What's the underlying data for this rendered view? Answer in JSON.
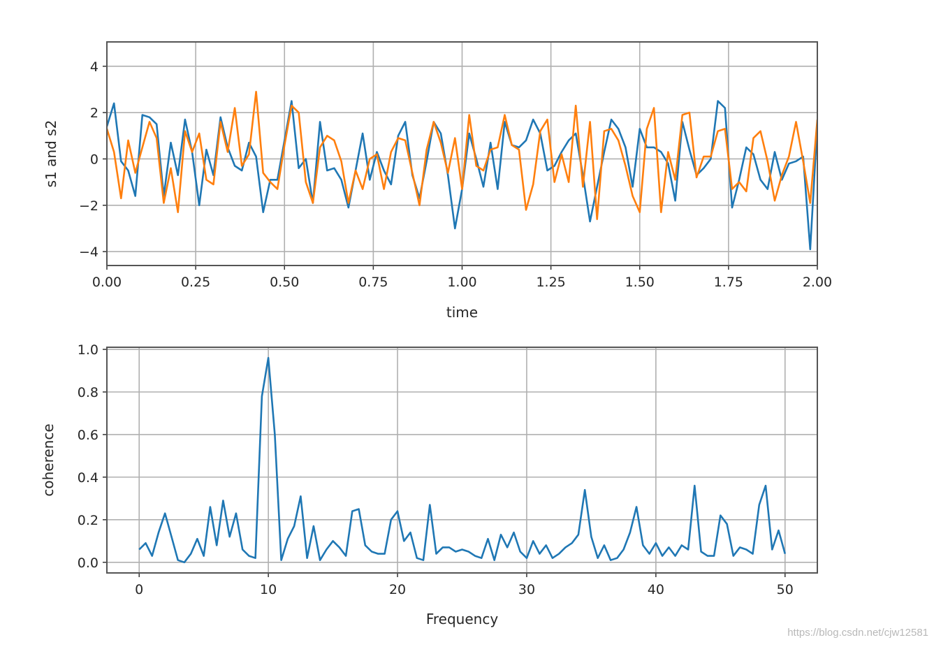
{
  "chart_data": [
    {
      "type": "line",
      "title": "",
      "xlabel": "time",
      "ylabel": "s1 and s2",
      "xlim": [
        0,
        2.0
      ],
      "ylim": [
        -4.6,
        5.05
      ],
      "grid": true,
      "xticks": [
        "0.00",
        "0.25",
        "0.50",
        "0.75",
        "1.00",
        "1.25",
        "1.50",
        "1.75",
        "2.00"
      ],
      "xtick_values": [
        0,
        0.25,
        0.5,
        0.75,
        1.0,
        1.25,
        1.5,
        1.75,
        2.0
      ],
      "yticks": [
        "−4",
        "−2",
        "0",
        "2",
        "4"
      ],
      "ytick_values": [
        -4,
        -2,
        0,
        2,
        4
      ],
      "x_start": 0,
      "x_step": 0.02,
      "series": [
        {
          "name": "s1",
          "color": "#1f77b4",
          "values": [
            1.4,
            2.4,
            -0.1,
            -0.5,
            -1.6,
            1.9,
            1.8,
            1.5,
            -1.6,
            0.7,
            -0.7,
            1.7,
            0.3,
            -2.0,
            0.4,
            -0.7,
            1.8,
            0.5,
            -0.3,
            -0.5,
            0.7,
            0.1,
            -2.3,
            -0.9,
            -0.9,
            0.8,
            2.5,
            -0.4,
            0.0,
            -1.9,
            1.6,
            -0.5,
            -0.4,
            -0.9,
            -2.1,
            -0.5,
            1.1,
            -0.9,
            0.3,
            -0.5,
            -1.1,
            1.0,
            1.6,
            -0.7,
            -1.7,
            -0.1,
            1.6,
            1.1,
            -0.7,
            -3.0,
            -1.3,
            1.1,
            0.0,
            -1.2,
            0.7,
            -1.3,
            1.6,
            0.6,
            0.5,
            0.8,
            1.7,
            1.1,
            -0.5,
            -0.3,
            0.3,
            0.8,
            1.1,
            -0.7,
            -2.7,
            -1.2,
            0.3,
            1.7,
            1.3,
            0.5,
            -1.2,
            1.3,
            0.5,
            0.5,
            0.3,
            -0.2,
            -1.8,
            1.6,
            0.4,
            -0.7,
            -0.4,
            0.0,
            2.5,
            2.2,
            -2.1,
            -0.9,
            0.5,
            0.2,
            -0.9,
            -1.3,
            0.3,
            -0.9,
            -0.2,
            -0.1,
            0.1,
            -3.9,
            1.5
          ]
        },
        {
          "name": "s2",
          "color": "#ff7f0e",
          "values": [
            1.3,
            0.3,
            -1.7,
            0.8,
            -0.6,
            0.5,
            1.6,
            0.9,
            -1.9,
            -0.4,
            -2.3,
            1.2,
            0.3,
            1.1,
            -0.9,
            -1.1,
            1.6,
            0.3,
            2.2,
            -0.3,
            0.2,
            2.9,
            -0.6,
            -1.0,
            -1.3,
            0.6,
            2.3,
            2.0,
            -1.0,
            -1.9,
            0.5,
            1.0,
            0.8,
            -0.1,
            -1.9,
            -0.5,
            -1.3,
            0.0,
            0.2,
            -1.3,
            0.3,
            0.9,
            0.8,
            -0.6,
            -2.0,
            0.4,
            1.6,
            0.7,
            -0.6,
            0.9,
            -1.3,
            1.9,
            -0.3,
            -0.5,
            0.4,
            0.5,
            1.9,
            0.6,
            0.4,
            -2.2,
            -1.1,
            1.2,
            1.7,
            -1.0,
            0.2,
            -1.0,
            2.3,
            -1.2,
            1.6,
            -2.6,
            1.2,
            1.3,
            0.8,
            -0.3,
            -1.6,
            -2.3,
            1.3,
            2.2,
            -2.3,
            0.3,
            -0.9,
            1.9,
            2.0,
            -0.8,
            0.1,
            0.1,
            1.2,
            1.3,
            -1.3,
            -1.0,
            -1.4,
            0.9,
            1.2,
            -0.1,
            -1.8,
            -0.7,
            0.1,
            1.6,
            -0.1,
            -1.9,
            1.7
          ]
        }
      ]
    },
    {
      "type": "line",
      "title": "",
      "xlabel": "Frequency",
      "ylabel": "coherence",
      "xlim": [
        -2.5,
        52.5
      ],
      "ylim": [
        -0.05,
        1.01
      ],
      "grid": true,
      "xticks": [
        "0",
        "10",
        "20",
        "30",
        "40",
        "50"
      ],
      "xtick_values": [
        0,
        10,
        20,
        30,
        40,
        50
      ],
      "yticks": [
        "0.0",
        "0.2",
        "0.4",
        "0.6",
        "0.8",
        "1.0"
      ],
      "ytick_values": [
        0,
        0.2,
        0.4,
        0.6,
        0.8,
        1.0
      ],
      "x_start": 0,
      "x_step": 0.5,
      "series": [
        {
          "name": "coherence",
          "color": "#1f77b4",
          "values": [
            0.06,
            0.09,
            0.03,
            0.14,
            0.23,
            0.12,
            0.01,
            0.0,
            0.04,
            0.11,
            0.03,
            0.26,
            0.08,
            0.29,
            0.12,
            0.23,
            0.06,
            0.03,
            0.02,
            0.78,
            0.96,
            0.6,
            0.01,
            0.11,
            0.17,
            0.31,
            0.02,
            0.17,
            0.01,
            0.06,
            0.1,
            0.07,
            0.03,
            0.24,
            0.25,
            0.08,
            0.05,
            0.04,
            0.04,
            0.2,
            0.24,
            0.1,
            0.14,
            0.02,
            0.01,
            0.27,
            0.04,
            0.07,
            0.07,
            0.05,
            0.06,
            0.05,
            0.03,
            0.02,
            0.11,
            0.01,
            0.13,
            0.07,
            0.14,
            0.05,
            0.02,
            0.1,
            0.04,
            0.08,
            0.02,
            0.04,
            0.07,
            0.09,
            0.13,
            0.34,
            0.12,
            0.02,
            0.08,
            0.01,
            0.02,
            0.06,
            0.14,
            0.26,
            0.08,
            0.04,
            0.09,
            0.03,
            0.07,
            0.03,
            0.08,
            0.06,
            0.36,
            0.05,
            0.03,
            0.03,
            0.22,
            0.18,
            0.03,
            0.07,
            0.06,
            0.04,
            0.27,
            0.36,
            0.06,
            0.15,
            0.04
          ]
        }
      ]
    }
  ],
  "watermark": "https://blog.csdn.net/cjw12581"
}
